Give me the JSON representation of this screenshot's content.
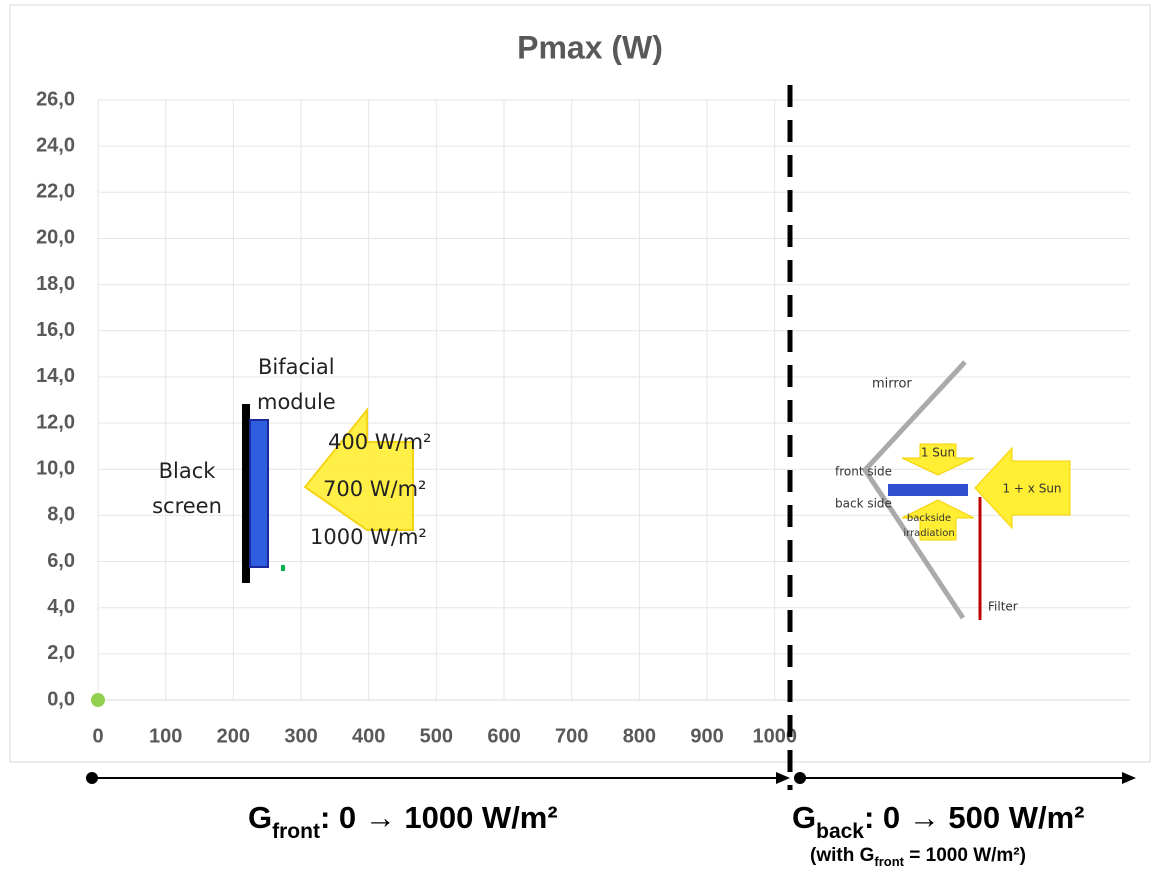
{
  "chart_data": {
    "type": "scatter",
    "title": "Pmax (W)",
    "series": [
      {
        "color": "#92d050",
        "x": [
          0
        ],
        "values": [
          0
        ]
      }
    ],
    "xlim": [
      0,
      1525
    ],
    "ylim": [
      0,
      26
    ],
    "xticks": [
      0,
      100,
      200,
      300,
      400,
      500,
      600,
      700,
      800,
      900,
      1000
    ],
    "yticks": [
      {
        "value": 0,
        "label": "0,0"
      },
      {
        "value": 2,
        "label": "2,0"
      },
      {
        "value": 4,
        "label": "4,0"
      },
      {
        "value": 6,
        "label": "6,0"
      },
      {
        "value": 8,
        "label": "8,0"
      },
      {
        "value": 10,
        "label": "10,0"
      },
      {
        "value": 12,
        "label": "12,0"
      },
      {
        "value": 14,
        "label": "14,0"
      },
      {
        "value": 16,
        "label": "16,0"
      },
      {
        "value": 18,
        "label": "18,0"
      },
      {
        "value": 20,
        "label": "20,0"
      },
      {
        "value": 22,
        "label": "22,0"
      },
      {
        "value": 24,
        "label": "24,0"
      },
      {
        "value": 26,
        "label": "26,0"
      }
    ],
    "grid": true,
    "annotations": {
      "black_screen": [
        "Black",
        "screen"
      ],
      "bifacial_module": [
        "Bifacial",
        "module"
      ],
      "irradiances": [
        "400 W/m²",
        "700 W/m²",
        "1000 W/m²"
      ],
      "mirror": "mirror",
      "one_sun": "1 Sun",
      "front_side": "front side",
      "back_side": "back side",
      "backside_irradiation": [
        "backside",
        "irradiation"
      ],
      "filter": "Filter",
      "one_plus_x_sun": "1 + x Sun"
    },
    "axis_notes": {
      "front": {
        "symbol": "G",
        "sub": "front",
        "rest": ": 0 → 1000 W/m²"
      },
      "back": {
        "symbol": "G",
        "sub": "back",
        "rest": ": 0 → 500 W/m²"
      },
      "back_condition": {
        "before": "(with G",
        "sub": "front",
        "after": " = 1000 W/m²)"
      }
    }
  }
}
